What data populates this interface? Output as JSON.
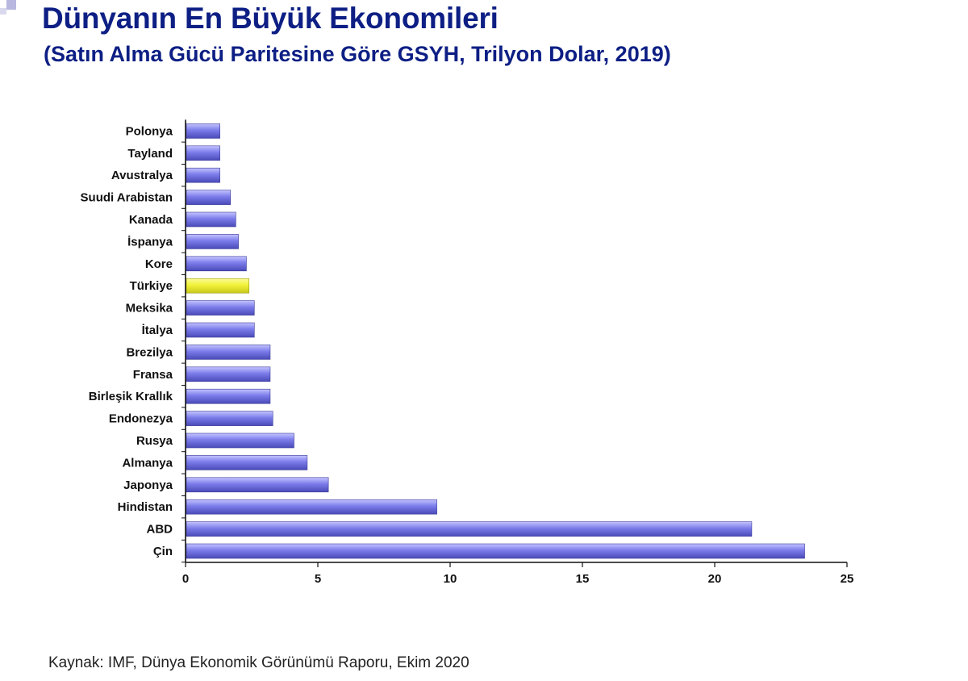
{
  "header": {
    "title": "Dünyanın En Büyük Ekonomileri",
    "subtitle": "(Satın Alma Gücü Paritesine Göre GSYH, Trilyon Dolar, 2019)"
  },
  "footer": {
    "source": "Kaynak: IMF, Dünya Ekonomik Görünümü Raporu, Ekim 2020"
  },
  "colors": {
    "bar": "#7b7bea",
    "highlight_bar": "#f1f13a",
    "title": "#0d1f84"
  },
  "chart_data": {
    "type": "bar",
    "orientation": "horizontal",
    "title": "",
    "xlabel": "",
    "ylabel": "",
    "categories": [
      "Çin",
      "ABD",
      "Hindistan",
      "Japonya",
      "Almanya",
      "Rusya",
      "Endonezya",
      "Birleşik Krallık",
      "Fransa",
      "Brezilya",
      "İtalya",
      "Meksika",
      "Türkiye",
      "Kore",
      "İspanya",
      "Kanada",
      "Suudi Arabistan",
      "Avustralya",
      "Tayland",
      "Polonya"
    ],
    "values": [
      23.4,
      21.4,
      9.5,
      5.4,
      4.6,
      4.1,
      3.3,
      3.2,
      3.2,
      3.2,
      2.6,
      2.6,
      2.4,
      2.3,
      2.0,
      1.9,
      1.7,
      1.3,
      1.3,
      1.3
    ],
    "highlight": "Türkiye",
    "xlim": [
      0,
      25
    ],
    "xticks": [
      0,
      5,
      10,
      15,
      20,
      25
    ],
    "grid": false,
    "legend": "none"
  }
}
